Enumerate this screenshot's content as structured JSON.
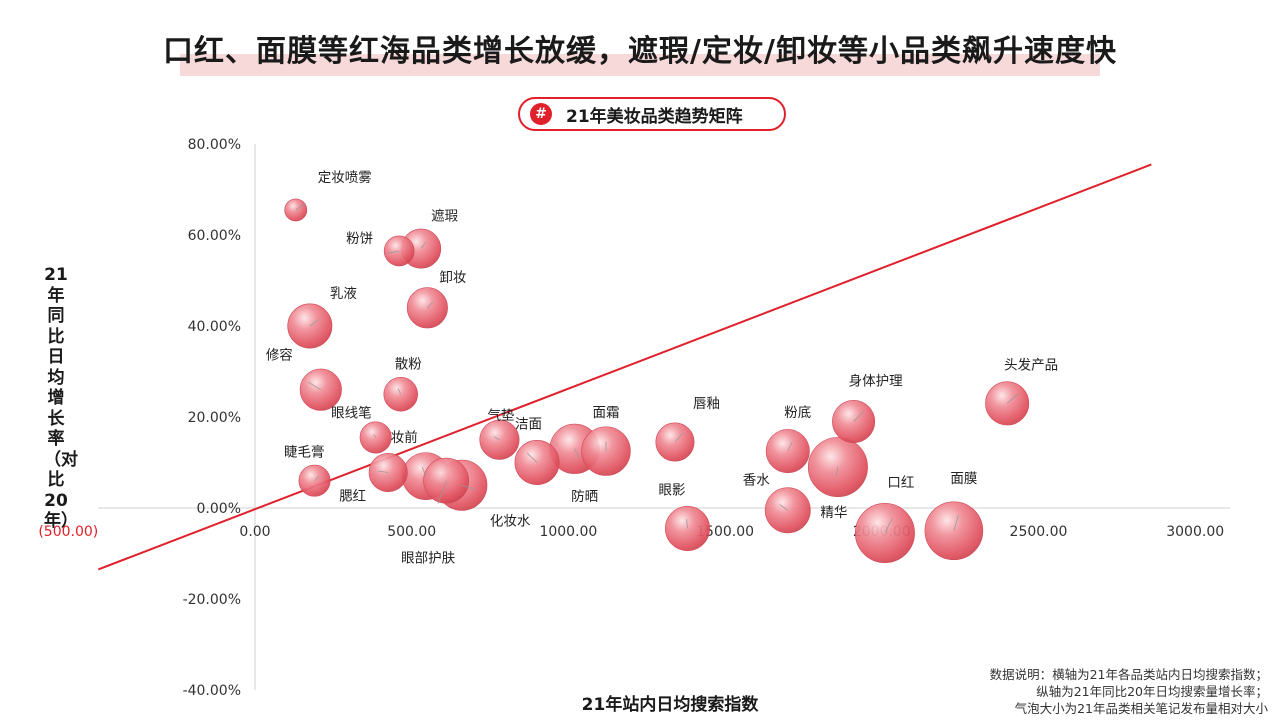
{
  "title": "口红、面膜等红海品类增长放缓，遮瑕/定妆/卸妆等小品类飙升速度快",
  "badge": {
    "icon": "#",
    "label": "21年美妆品类趋势矩阵"
  },
  "note": {
    "line1": "数据说明：横轴为21年各品类站内日均搜索指数；",
    "line2": "纵轴为21年同比20年日均搜索量增长率；",
    "line3": "气泡大小为21年品类相关笔记发布量相对大小"
  },
  "colors": {
    "accent": "#e0202a",
    "bubble": "#e0606c",
    "title_highlight": "#f8d9d9"
  },
  "chart_data": {
    "type": "scatter",
    "title": "",
    "xlabel": "21年站内日均搜索指数",
    "ylabel": "21年同比日均增长率（对比20年）",
    "xlim": [
      -500,
      3000
    ],
    "ylim": [
      -0.4,
      0.8
    ],
    "x_ticks": [
      {
        "value": -500,
        "label": "(500.00)"
      },
      {
        "value": 0,
        "label": "0.00"
      },
      {
        "value": 500,
        "label": "500.00"
      },
      {
        "value": 1000,
        "label": "1000.00"
      },
      {
        "value": 1500,
        "label": "1500.00"
      },
      {
        "value": 2000,
        "label": "2000.00"
      },
      {
        "value": 2500,
        "label": "2500.00"
      },
      {
        "value": 3000,
        "label": "3000.00"
      }
    ],
    "y_ticks": [
      {
        "value": 0.8,
        "label": "80.00%"
      },
      {
        "value": 0.6,
        "label": "60.00%"
      },
      {
        "value": 0.4,
        "label": "40.00%"
      },
      {
        "value": 0.2,
        "label": "20.00%"
      },
      {
        "value": 0.0,
        "label": "0.00%"
      },
      {
        "value": -0.2,
        "label": "-20.00%"
      },
      {
        "value": -0.4,
        "label": "-40.00%"
      }
    ],
    "trend_line": {
      "x": [
        -500,
        2860
      ],
      "y": [
        -0.135,
        0.755
      ]
    },
    "points": [
      {
        "name": "定妆喷雾",
        "x": 130,
        "y": 0.655,
        "size": 0.12
      },
      {
        "name": "粉饼",
        "x": 460,
        "y": 0.565,
        "size": 0.22
      },
      {
        "name": "遮瑕",
        "x": 530,
        "y": 0.57,
        "size": 0.38
      },
      {
        "name": "乳液",
        "x": 175,
        "y": 0.4,
        "size": 0.48
      },
      {
        "name": "卸妆",
        "x": 550,
        "y": 0.44,
        "size": 0.4
      },
      {
        "name": "修容",
        "x": 210,
        "y": 0.26,
        "size": 0.42
      },
      {
        "name": "散粉",
        "x": 465,
        "y": 0.25,
        "size": 0.28
      },
      {
        "name": "眼线笔",
        "x": 385,
        "y": 0.155,
        "size": 0.24
      },
      {
        "name": "睫毛膏",
        "x": 190,
        "y": 0.06,
        "size": 0.24
      },
      {
        "name": "腮红",
        "x": 425,
        "y": 0.078,
        "size": 0.36
      },
      {
        "name": "妆前",
        "x": 545,
        "y": 0.07,
        "size": 0.54
      },
      {
        "name": "眼部护肤",
        "x": 610,
        "y": 0.06,
        "size": 0.5
      },
      {
        "name": "化妆水",
        "x": 660,
        "y": 0.05,
        "size": 0.62
      },
      {
        "name": "气垫",
        "x": 780,
        "y": 0.15,
        "size": 0.38
      },
      {
        "name": "洁面",
        "x": 900,
        "y": 0.1,
        "size": 0.48
      },
      {
        "name": "防晒",
        "x": 1020,
        "y": 0.13,
        "size": 0.6
      },
      {
        "name": "面霜",
        "x": 1120,
        "y": 0.125,
        "size": 0.58
      },
      {
        "name": "唇釉",
        "x": 1340,
        "y": 0.145,
        "size": 0.36
      },
      {
        "name": "眼影",
        "x": 1380,
        "y": -0.045,
        "size": 0.48
      },
      {
        "name": "粉底",
        "x": 1700,
        "y": 0.125,
        "size": 0.46
      },
      {
        "name": "香水",
        "x": 1700,
        "y": -0.005,
        "size": 0.5
      },
      {
        "name": "精华",
        "x": 1860,
        "y": 0.09,
        "size": 0.86
      },
      {
        "name": "身体护理",
        "x": 1910,
        "y": 0.19,
        "size": 0.44
      },
      {
        "name": "口红",
        "x": 2010,
        "y": -0.055,
        "size": 0.86
      },
      {
        "name": "面膜",
        "x": 2230,
        "y": -0.05,
        "size": 0.82
      },
      {
        "name": "头发产品",
        "x": 2400,
        "y": 0.23,
        "size": 0.46
      }
    ]
  }
}
